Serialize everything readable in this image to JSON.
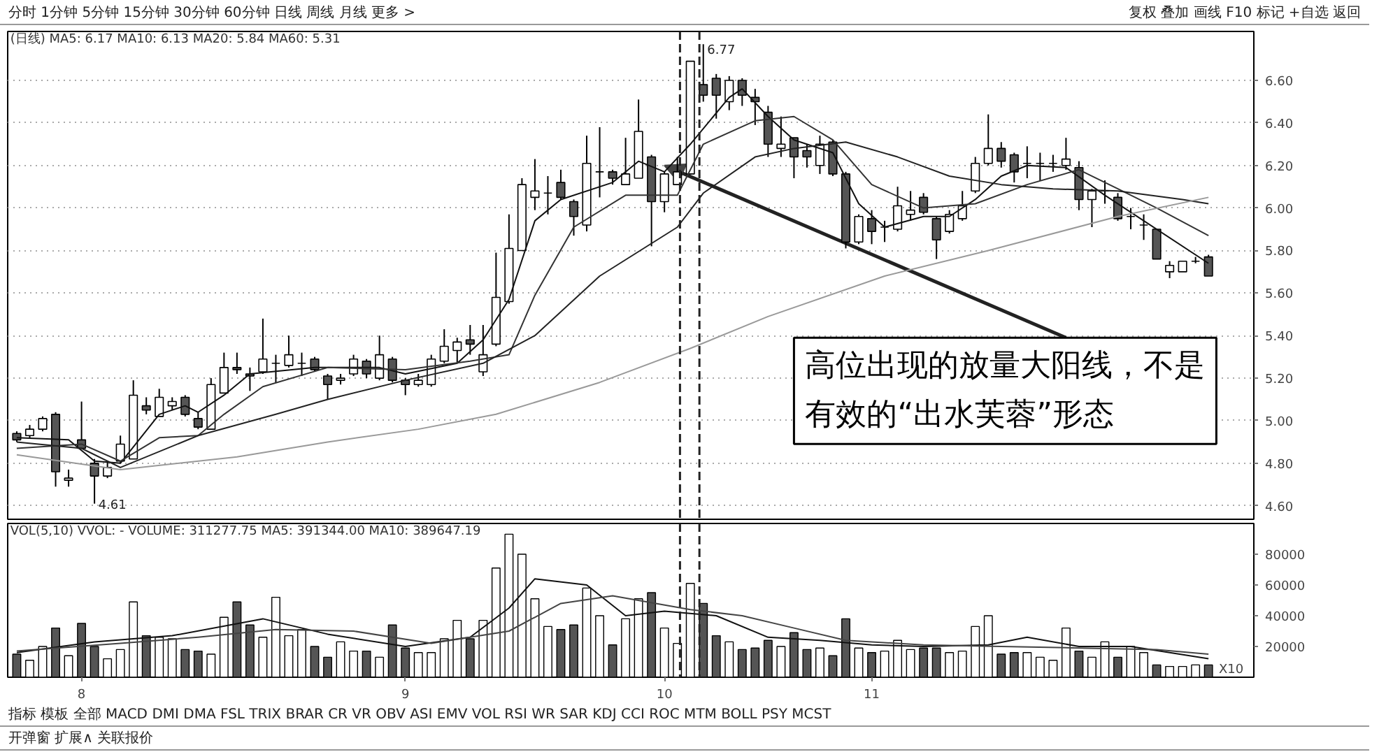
{
  "chart_data": [
    {
      "type": "candlestick",
      "annotations": [
        "分时 1分钟 5分钟 15分钟 30分钟 60分钟 日线 周线 月线 更多 >",
        "复权 叠加 画线 F10 标记 +自选 返回",
        "(日线) MA5: 6.17 MA10: 6.13 MA20: 5.84 MA60: 5.31",
        "4.61",
        "6.77",
        {
          "text": "高位出现的放量大阳线，不是有效的“出水芙蓉”形态",
          "x": "10",
          "y": 6.2
        }
      ],
      "categories": [
        null,
        null,
        null,
        null,
        null,
        "8",
        null,
        null,
        null,
        null,
        null,
        null,
        null,
        null,
        null,
        null,
        null,
        null,
        null,
        null,
        null,
        null,
        null,
        null,
        null,
        null,
        null,
        null,
        null,
        null,
        "9",
        null,
        null,
        null,
        null,
        null,
        null,
        null,
        null,
        null,
        null,
        null,
        null,
        null,
        null,
        null,
        null,
        null,
        null,
        null,
        "10",
        null,
        null,
        null,
        null,
        null,
        null,
        null,
        null,
        null,
        null,
        null,
        null,
        null,
        null,
        null,
        "11",
        null,
        null,
        null,
        null,
        null,
        null,
        null,
        null,
        null,
        null,
        null,
        null,
        null,
        null,
        null,
        null,
        null,
        null,
        null,
        null,
        null,
        null,
        null,
        null,
        null,
        null
      ],
      "ohlc": [
        [
          4.94,
          4.95,
          4.9,
          4.91
        ],
        [
          4.93,
          4.98,
          4.92,
          4.96
        ],
        [
          4.96,
          5.02,
          4.95,
          5.01
        ],
        [
          5.03,
          5.04,
          4.69,
          4.76
        ],
        [
          4.72,
          4.77,
          4.69,
          4.73
        ],
        [
          4.91,
          5.09,
          4.87,
          4.87
        ],
        [
          4.8,
          4.82,
          4.61,
          4.74
        ],
        [
          4.74,
          4.81,
          4.73,
          4.78
        ],
        [
          4.81,
          4.93,
          4.8,
          4.89
        ],
        [
          4.82,
          5.19,
          4.82,
          5.12
        ],
        [
          5.07,
          5.11,
          5.03,
          5.05
        ],
        [
          5.02,
          5.15,
          5.02,
          5.11
        ],
        [
          5.07,
          5.11,
          5.05,
          5.09
        ],
        [
          5.11,
          5.12,
          5.02,
          5.03
        ],
        [
          5.01,
          5.04,
          4.96,
          4.97
        ],
        [
          4.96,
          5.2,
          4.96,
          5.17
        ],
        [
          5.13,
          5.32,
          5.13,
          5.25
        ],
        [
          5.25,
          5.32,
          5.22,
          5.24
        ],
        [
          5.22,
          5.25,
          5.14,
          5.21
        ],
        [
          5.23,
          5.48,
          5.22,
          5.29
        ],
        [
          5.27,
          5.31,
          5.18,
          5.27
        ],
        [
          5.26,
          5.4,
          5.25,
          5.31
        ],
        [
          5.27,
          5.32,
          5.21,
          5.27
        ],
        [
          5.29,
          5.3,
          5.23,
          5.24
        ],
        [
          5.21,
          5.22,
          5.1,
          5.17
        ],
        [
          5.19,
          5.22,
          5.17,
          5.2
        ],
        [
          5.22,
          5.31,
          5.21,
          5.29
        ],
        [
          5.28,
          5.29,
          5.2,
          5.22
        ],
        [
          5.2,
          5.4,
          5.19,
          5.31
        ],
        [
          5.29,
          5.3,
          5.18,
          5.19
        ],
        [
          5.19,
          5.2,
          5.12,
          5.17
        ],
        [
          5.17,
          5.22,
          5.16,
          5.19
        ],
        [
          5.17,
          5.31,
          5.16,
          5.29
        ],
        [
          5.28,
          5.43,
          5.27,
          5.35
        ],
        [
          5.33,
          5.39,
          5.27,
          5.37
        ],
        [
          5.38,
          5.45,
          5.31,
          5.36
        ],
        [
          5.23,
          5.45,
          5.21,
          5.31
        ],
        [
          5.36,
          5.79,
          5.35,
          5.58
        ],
        [
          5.56,
          5.97,
          5.55,
          5.81
        ],
        [
          5.8,
          6.14,
          5.8,
          6.11
        ],
        [
          6.05,
          6.23,
          5.99,
          6.08
        ],
        [
          6.07,
          6.15,
          5.97,
          6.07
        ],
        [
          6.12,
          6.18,
          6.04,
          6.05
        ],
        [
          6.03,
          6.04,
          5.87,
          5.96
        ],
        [
          5.92,
          6.34,
          5.89,
          6.21
        ],
        [
          6.17,
          6.38,
          6.05,
          6.17
        ],
        [
          6.17,
          6.18,
          6.11,
          6.14
        ],
        [
          6.11,
          6.33,
          6.11,
          6.16
        ],
        [
          6.14,
          6.51,
          6.14,
          6.36
        ],
        [
          6.24,
          6.25,
          5.82,
          6.03
        ],
        [
          6.03,
          6.17,
          5.98,
          6.16
        ],
        [
          6.11,
          6.24,
          6.11,
          6.17
        ],
        [
          6.16,
          6.69,
          6.16,
          6.69
        ],
        [
          6.58,
          6.77,
          6.5,
          6.53
        ],
        [
          6.61,
          6.63,
          6.42,
          6.53
        ],
        [
          6.5,
          6.62,
          6.46,
          6.6
        ],
        [
          6.6,
          6.61,
          6.48,
          6.53
        ],
        [
          6.52,
          6.56,
          6.39,
          6.5
        ],
        [
          6.45,
          6.48,
          6.24,
          6.3
        ],
        [
          6.28,
          6.43,
          6.24,
          6.3
        ],
        [
          6.33,
          6.33,
          6.14,
          6.24
        ],
        [
          6.27,
          6.3,
          6.19,
          6.24
        ],
        [
          6.2,
          6.34,
          6.16,
          6.3
        ],
        [
          6.31,
          6.32,
          6.15,
          6.16
        ],
        [
          6.16,
          6.17,
          5.81,
          5.84
        ],
        [
          5.84,
          5.97,
          5.83,
          5.96
        ],
        [
          5.95,
          5.99,
          5.83,
          5.89
        ],
        [
          5.91,
          5.94,
          5.84,
          5.91
        ],
        [
          5.9,
          6.1,
          5.89,
          6.01
        ],
        [
          5.97,
          6.08,
          5.94,
          5.99
        ],
        [
          6.05,
          6.07,
          5.97,
          5.98
        ],
        [
          5.95,
          5.96,
          5.76,
          5.85
        ],
        [
          5.89,
          5.99,
          5.88,
          5.97
        ],
        [
          5.95,
          6.08,
          5.94,
          6.01
        ],
        [
          6.08,
          6.24,
          6.07,
          6.21
        ],
        [
          6.21,
          6.44,
          6.2,
          6.28
        ],
        [
          6.28,
          6.31,
          6.19,
          6.22
        ],
        [
          6.25,
          6.26,
          6.12,
          6.17
        ],
        [
          6.21,
          6.29,
          6.14,
          6.21
        ],
        [
          6.21,
          6.26,
          6.13,
          6.21
        ],
        [
          6.21,
          6.25,
          6.17,
          6.21
        ],
        [
          6.2,
          6.33,
          6.18,
          6.23
        ],
        [
          6.19,
          6.22,
          5.99,
          6.04
        ],
        [
          6.04,
          6.09,
          5.91,
          6.08
        ],
        [
          6.08,
          6.13,
          6.02,
          6.08
        ],
        [
          6.05,
          6.07,
          5.94,
          5.95
        ],
        [
          5.96,
          6.0,
          5.9,
          5.96
        ],
        [
          5.92,
          5.97,
          5.85,
          5.92
        ],
        [
          5.9,
          5.9,
          5.76,
          5.76
        ],
        [
          5.7,
          5.75,
          5.67,
          5.73
        ],
        [
          5.7,
          5.75,
          5.7,
          5.75
        ],
        [
          5.75,
          5.77,
          5.74,
          5.75
        ],
        [
          5.77,
          5.78,
          5.68,
          5.68
        ]
      ],
      "series": [
        {
          "type": "line",
          "color": "#111111",
          "values": [
            4.92,
            null,
            null,
            null,
            4.91,
            null,
            4.81,
            null,
            4.8,
            null,
            null,
            5.03,
            null,
            5.07,
            5.04,
            null,
            5.12,
            null,
            5.22,
            null,
            null,
            null,
            null,
            5.25,
            null,
            null,
            null,
            null,
            5.25,
            null,
            5.22,
            null,
            null,
            null,
            5.27,
            null,
            5.38,
            null,
            5.57,
            null,
            5.94,
            null,
            6.04,
            null,
            null,
            null,
            6.12,
            null,
            6.22,
            null,
            6.17,
            null,
            6.3,
            null,
            null,
            6.52,
            6.56,
            null,
            6.43,
            null,
            6.32,
            null,
            null,
            6.26,
            null,
            6.02,
            null,
            5.91,
            null,
            null,
            5.96,
            null,
            5.96,
            null,
            6.04,
            null,
            6.15,
            null,
            6.2,
            null,
            null,
            6.19,
            null,
            null,
            6.06,
            null,
            null,
            5.94,
            null,
            null,
            null,
            null,
            5.74
          ]
        },
        {
          "type": "line",
          "color": "#333333",
          "values": [
            4.87,
            null,
            null,
            null,
            null,
            4.89,
            null,
            null,
            4.81,
            null,
            null,
            4.92,
            null,
            null,
            4.93,
            null,
            5.03,
            null,
            null,
            5.16,
            null,
            null,
            null,
            null,
            5.25,
            null,
            null,
            null,
            null,
            null,
            5.24,
            null,
            null,
            null,
            null,
            5.28,
            null,
            null,
            5.31,
            null,
            5.59,
            null,
            null,
            5.91,
            null,
            null,
            null,
            6.06,
            null,
            null,
            null,
            6.06,
            null,
            6.3,
            null,
            null,
            null,
            6.41,
            null,
            null,
            6.43,
            null,
            null,
            6.32,
            null,
            null,
            6.11,
            null,
            null,
            null,
            6.0,
            null,
            null,
            null,
            6.02,
            null,
            null,
            null,
            6.11,
            null,
            null,
            null,
            6.18,
            null,
            null,
            6.09,
            null,
            null,
            6.0,
            null,
            null,
            null,
            5.87
          ]
        },
        {
          "type": "line",
          "color": "#222222",
          "values": [
            4.9,
            null,
            null,
            null,
            null,
            4.87,
            null,
            null,
            4.78,
            null,
            null,
            null,
            null,
            null,
            4.93,
            null,
            null,
            null,
            null,
            null,
            5.03,
            null,
            null,
            null,
            5.1,
            null,
            null,
            null,
            null,
            null,
            5.19,
            null,
            null,
            null,
            null,
            null,
            5.27,
            null,
            null,
            null,
            5.4,
            null,
            null,
            null,
            null,
            5.68,
            null,
            null,
            null,
            null,
            null,
            5.91,
            null,
            6.07,
            null,
            null,
            null,
            6.24,
            null,
            null,
            6.28,
            null,
            null,
            null,
            6.31,
            null,
            null,
            null,
            6.24,
            null,
            null,
            null,
            6.15,
            null,
            null,
            null,
            6.11,
            null,
            null,
            null,
            6.09,
            null,
            null,
            null,
            null,
            6.08,
            null,
            null,
            null,
            null,
            6.04,
            null,
            6.02
          ]
        },
        {
          "type": "line",
          "color": "#999999",
          "values": [
            4.84,
            null,
            null,
            null,
            null,
            null,
            null,
            null,
            4.77,
            null,
            null,
            null,
            null,
            null,
            null,
            null,
            null,
            4.83,
            null,
            null,
            null,
            null,
            null,
            null,
            4.9,
            null,
            null,
            null,
            null,
            null,
            null,
            4.96,
            null,
            null,
            null,
            null,
            null,
            5.03,
            null,
            null,
            null,
            null,
            null,
            null,
            null,
            5.18,
            null,
            null,
            null,
            null,
            null,
            null,
            5.34,
            null,
            null,
            null,
            null,
            null,
            5.49,
            null,
            null,
            null,
            null,
            null,
            null,
            null,
            null,
            5.68,
            null,
            null,
            null,
            null,
            null,
            null,
            null,
            5.8,
            null,
            null,
            null,
            null,
            null,
            null,
            null,
            null,
            null,
            5.96,
            null,
            null,
            null,
            null,
            null,
            null,
            6.05
          ]
        }
      ],
      "ylim": [
        4.53,
        6.83
      ],
      "yticks": [
        {
          "value": 4.6,
          "label": "4.60"
        },
        {
          "value": 4.8,
          "label": "4.80"
        },
        {
          "value": 5.0,
          "label": "5.00"
        },
        {
          "value": 5.2,
          "label": "5.20"
        },
        {
          "value": 5.4,
          "label": "5.40"
        },
        {
          "value": 5.6,
          "label": "5.60"
        },
        {
          "value": 5.8,
          "label": "5.80"
        },
        {
          "value": 6.0,
          "label": "6.00"
        },
        {
          "value": 6.2,
          "label": "6.20"
        },
        {
          "value": 6.4,
          "label": "6.40"
        },
        {
          "value": 6.6,
          "label": "6.60"
        }
      ],
      "grid": "y",
      "tick_labels": "y"
    },
    {
      "type": "bar",
      "annotations": [
        "VOL(5,10) VVOL: - VOLUME: 311277.75 MA5: 391344.00 MA10: 389647.19",
        "X10",
        "指标 模板 全部 MACD DMI DMA FSL TRIX BRAR CR VR OBV ASI EMV VOL RSI WR SAR KDJ CCI ROC MTM BOLL PSY MCST",
        "开弹窗 扩展∧ 关联报价"
      ],
      "categories": [
        null,
        null,
        null,
        null,
        null,
        "8",
        null,
        null,
        null,
        null,
        null,
        null,
        null,
        null,
        null,
        null,
        null,
        null,
        null,
        null,
        null,
        null,
        null,
        null,
        null,
        null,
        null,
        null,
        null,
        null,
        "9",
        null,
        null,
        null,
        null,
        null,
        null,
        null,
        null,
        null,
        null,
        null,
        null,
        null,
        null,
        null,
        null,
        null,
        null,
        null,
        "10",
        null,
        null,
        null,
        null,
        null,
        null,
        null,
        null,
        null,
        null,
        null,
        null,
        null,
        null,
        null,
        "11",
        null,
        null,
        null,
        null,
        null,
        null,
        null,
        null,
        null,
        null,
        null,
        null,
        null,
        null,
        null,
        null,
        null,
        null,
        null,
        null,
        null,
        null,
        null,
        null,
        null,
        null
      ],
      "values": [
        15000,
        11000,
        20000,
        32000,
        14000,
        35000,
        20000,
        12000,
        18000,
        49000,
        27000,
        26000,
        25000,
        18000,
        17000,
        15000,
        39000,
        49000,
        34000,
        26000,
        52000,
        27000,
        31000,
        20000,
        13000,
        23000,
        17000,
        17000,
        13000,
        34000,
        19000,
        16000,
        16000,
        25000,
        37000,
        25000,
        37000,
        71000,
        93000,
        80000,
        51000,
        33000,
        31000,
        34000,
        58000,
        40000,
        21000,
        38000,
        51000,
        55000,
        32000,
        22000,
        61000,
        48000,
        27000,
        23000,
        18000,
        19000,
        24000,
        20000,
        29000,
        18000,
        19000,
        14000,
        38000,
        19000,
        16000,
        17000,
        24000,
        18000,
        19000,
        19000,
        16000,
        17000,
        33000,
        40000,
        15000,
        16000,
        16000,
        13000,
        11000,
        32000,
        17000,
        13000,
        23000,
        13000,
        20000,
        16000,
        8000,
        7000,
        7000,
        8000,
        8000
      ],
      "colors": [
        "#555555",
        "#ffffff",
        "#ffffff",
        "#555555",
        "#ffffff",
        "#555555",
        "#555555",
        "#ffffff",
        "#ffffff",
        "#ffffff",
        "#555555",
        "#ffffff",
        "#ffffff",
        "#555555",
        "#555555",
        "#ffffff",
        "#ffffff",
        "#555555",
        "#555555",
        "#ffffff",
        "#ffffff",
        "#ffffff",
        "#ffffff",
        "#555555",
        "#555555",
        "#ffffff",
        "#ffffff",
        "#555555",
        "#ffffff",
        "#555555",
        "#555555",
        "#ffffff",
        "#ffffff",
        "#ffffff",
        "#ffffff",
        "#555555",
        "#ffffff",
        "#ffffff",
        "#ffffff",
        "#ffffff",
        "#ffffff",
        "#ffffff",
        "#555555",
        "#555555",
        "#ffffff",
        "#ffffff",
        "#555555",
        "#ffffff",
        "#ffffff",
        "#555555",
        "#ffffff",
        "#ffffff",
        "#ffffff",
        "#555555",
        "#555555",
        "#ffffff",
        "#555555",
        "#555555",
        "#555555",
        "#ffffff",
        "#555555",
        "#555555",
        "#ffffff",
        "#555555",
        "#555555",
        "#ffffff",
        "#555555",
        "#ffffff",
        "#ffffff",
        "#ffffff",
        "#555555",
        "#555555",
        "#ffffff",
        "#ffffff",
        "#ffffff",
        "#ffffff",
        "#555555",
        "#555555",
        "#ffffff",
        "#ffffff",
        "#ffffff",
        "#ffffff",
        "#555555",
        "#ffffff",
        "#ffffff",
        "#555555",
        "#ffffff",
        "#ffffff",
        "#555555",
        "#ffffff",
        "#ffffff",
        "#ffffff",
        "#555555"
      ],
      "series": [
        {
          "type": "line",
          "color": "#111111",
          "values": [
            16000,
            null,
            null,
            null,
            null,
            null,
            23000,
            null,
            null,
            null,
            null,
            null,
            27000,
            null,
            null,
            null,
            null,
            null,
            null,
            38000,
            null,
            null,
            null,
            null,
            28000,
            null,
            null,
            null,
            null,
            null,
            20000,
            null,
            null,
            null,
            null,
            26000,
            null,
            null,
            45000,
            null,
            64000,
            null,
            null,
            null,
            60000,
            null,
            null,
            40000,
            null,
            null,
            43000,
            null,
            null,
            null,
            40000,
            null,
            null,
            null,
            26000,
            null,
            null,
            null,
            24000,
            null,
            null,
            null,
            21000,
            null,
            null,
            null,
            20000,
            null,
            null,
            null,
            null,
            21000,
            null,
            null,
            26000,
            null,
            null,
            null,
            20000,
            null,
            null,
            null,
            20000,
            null,
            null,
            null,
            null,
            null,
            12000
          ]
        },
        {
          "type": "line",
          "color": "#444444",
          "values": [
            17000,
            null,
            null,
            null,
            null,
            null,
            null,
            null,
            22000,
            null,
            null,
            null,
            null,
            null,
            26000,
            null,
            null,
            null,
            null,
            null,
            31000,
            null,
            null,
            null,
            null,
            null,
            30000,
            null,
            null,
            null,
            null,
            null,
            22000,
            null,
            null,
            null,
            null,
            null,
            30000,
            null,
            null,
            null,
            48000,
            null,
            null,
            null,
            53000,
            null,
            null,
            null,
            null,
            null,
            44000,
            null,
            null,
            null,
            40000,
            null,
            null,
            null,
            32000,
            null,
            null,
            null,
            24000,
            null,
            null,
            null,
            null,
            null,
            21000,
            null,
            null,
            null,
            null,
            null,
            20000,
            null,
            null,
            null,
            null,
            null,
            19000,
            null,
            null,
            null,
            null,
            null,
            18000,
            null,
            null,
            null,
            15000
          ]
        }
      ],
      "ylim": [
        0,
        100000
      ],
      "yticks": [
        20000,
        40000,
        60000,
        80000
      ]
    }
  ]
}
